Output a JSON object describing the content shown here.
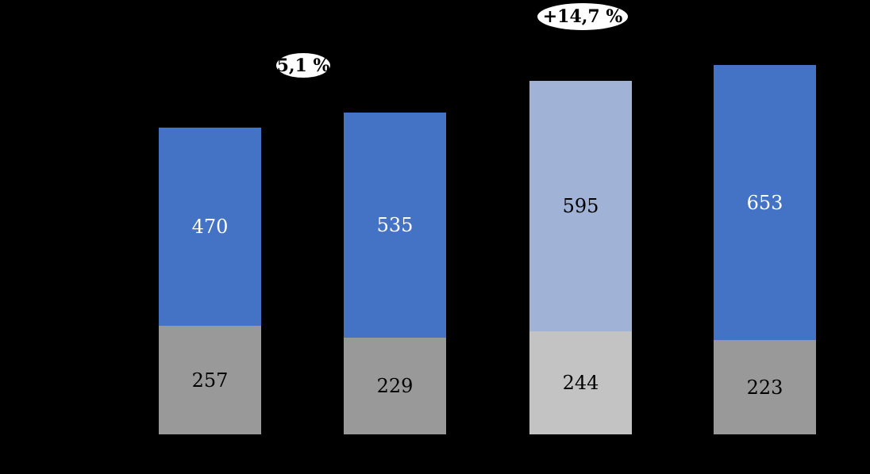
{
  "chart_data": {
    "type": "bar",
    "stacked": true,
    "background_color": "#000000",
    "categories": [
      "",
      "",
      "",
      ""
    ],
    "series": [
      {
        "name": "bottom-gray-segment",
        "values": [
          257,
          229,
          244,
          223
        ]
      },
      {
        "name": "top-blue-segment",
        "values": [
          470,
          535,
          595,
          653
        ]
      }
    ],
    "bars": [
      {
        "top": {
          "value": 470,
          "color": "#4472C4",
          "text_color": "#FFFFFF"
        },
        "bottom": {
          "value": 257,
          "color": "#999999",
          "text_color": "#000000"
        }
      },
      {
        "top": {
          "value": 535,
          "color": "#4472C4",
          "text_color": "#FFFFFF"
        },
        "bottom": {
          "value": 229,
          "color": "#999999",
          "text_color": "#000000"
        }
      },
      {
        "top": {
          "value": 595,
          "color": "#A0B2D6",
          "text_color": "#000000"
        },
        "bottom": {
          "value": 244,
          "color": "#C3C3C3",
          "text_color": "#000000"
        }
      },
      {
        "top": {
          "value": 653,
          "color": "#4472C4",
          "text_color": "#FFFFFF"
        },
        "bottom": {
          "value": 223,
          "color": "#999999",
          "text_color": "#000000"
        }
      }
    ],
    "annotations": [
      {
        "text": "5,1 %",
        "anchor": "above gap between bar 1 and bar 2"
      },
      {
        "text": "+14,7 %",
        "anchor": "above bar 3"
      }
    ],
    "value_labels_visible": true,
    "axes_visible": false,
    "legend_visible": false,
    "highlighted_bar_index": 2
  }
}
